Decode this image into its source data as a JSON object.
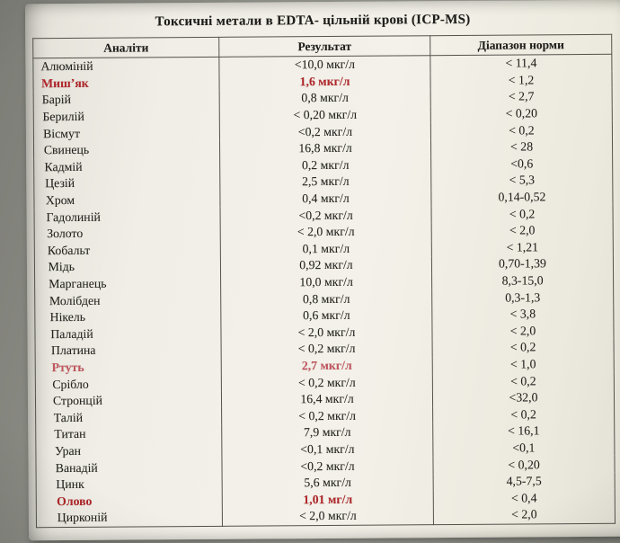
{
  "title": "Токсичні метали в  EDTA- цільній крові (ICP-MS)",
  "colors": {
    "flag_red": "#b2262b",
    "paper": "#f0eee6",
    "border": "#53524b"
  },
  "table": {
    "headers": [
      "Аналіти",
      "Результат",
      "Діапазон норми"
    ],
    "unit": "мкг/л",
    "rows": [
      {
        "analyte": "Алюміній",
        "result": "<10,0 мкг/л",
        "norm": "< 11,4",
        "flag": false
      },
      {
        "analyte": "Миш’як",
        "result": "1,6  мкг/л",
        "norm": "< 1,2",
        "flag": true
      },
      {
        "analyte": "Барій",
        "result": "0,8  мкг/л",
        "norm": "< 2,7",
        "flag": false
      },
      {
        "analyte": "Берилій",
        "result": "< 0,20 мкг/л",
        "norm": "< 0,20",
        "flag": false
      },
      {
        "analyte": "Вісмут",
        "result": "<0,2 мкг/л",
        "norm": "< 0,2",
        "flag": false
      },
      {
        "analyte": "Свинець",
        "result": "16,8 мкг/л",
        "norm": "< 28",
        "flag": false
      },
      {
        "analyte": "Кадмій",
        "result": "0,2 мкг/л",
        "norm": "<0,6",
        "flag": false
      },
      {
        "analyte": "Цезій",
        "result": "2,5 мкг/л",
        "norm": "< 5,3",
        "flag": false
      },
      {
        "analyte": "Хром",
        "result": "0,4 мкг/л",
        "norm": "0,14-0,52",
        "flag": false
      },
      {
        "analyte": "Гадолиній",
        "result": "<0,2 мкг/л",
        "norm": "< 0,2",
        "flag": false
      },
      {
        "analyte": "Золото",
        "result": "< 2,0 мкг/л",
        "norm": "< 2,0",
        "flag": false
      },
      {
        "analyte": "Кобальт",
        "result": "0,1 мкг/л",
        "norm": "< 1,21",
        "flag": false
      },
      {
        "analyte": "Мідь",
        "result": "0,92 мкг/л",
        "norm": "0,70-1,39",
        "flag": false
      },
      {
        "analyte": "Марганець",
        "result": "10,0 мкг/л",
        "norm": "8,3-15,0",
        "flag": false
      },
      {
        "analyte": "Молібден",
        "result": "0,8 мкг/л",
        "norm": "0,3-1,3",
        "flag": false
      },
      {
        "analyte": "Нікель",
        "result": "0,6 мкг/л",
        "norm": "< 3,8",
        "flag": false
      },
      {
        "analyte": "Паладій",
        "result": "< 2,0 мкг/л",
        "norm": "< 2,0",
        "flag": false
      },
      {
        "analyte": "Платина",
        "result": "< 0,2 мкг/л",
        "norm": "< 0,2",
        "flag": false
      },
      {
        "analyte": "Ртуть",
        "result": "2,7 мкг/л",
        "norm": "< 1,0",
        "flag": true
      },
      {
        "analyte": "Срібло",
        "result": "< 0,2 мкг/л",
        "norm": "< 0,2",
        "flag": false
      },
      {
        "analyte": "Стронцій",
        "result": "16,4 мкг/л",
        "norm": "<32,0",
        "flag": false
      },
      {
        "analyte": "Талій",
        "result": "< 0,2 мкг/л",
        "norm": "< 0,2",
        "flag": false
      },
      {
        "analyte": "Титан",
        "result": "7,9 мкг/л",
        "norm": "< 16,1",
        "flag": false
      },
      {
        "analyte": "Уран",
        "result": "<0,1 мкг/л",
        "norm": "<0,1",
        "flag": false
      },
      {
        "analyte": "Ванадій",
        "result": "<0,2 мкг/л",
        "norm": "< 0,20",
        "flag": false
      },
      {
        "analyte": "Цинк",
        "result": "5,6 мкг/л",
        "norm": "4,5-7,5",
        "flag": false
      },
      {
        "analyte": "Олово",
        "result": "1,01 мг/л",
        "norm": "< 0,4",
        "flag": true
      },
      {
        "analyte": "Цирконій",
        "result": "< 2,0 мкг/л",
        "norm": "< 2,0",
        "flag": false
      }
    ]
  }
}
